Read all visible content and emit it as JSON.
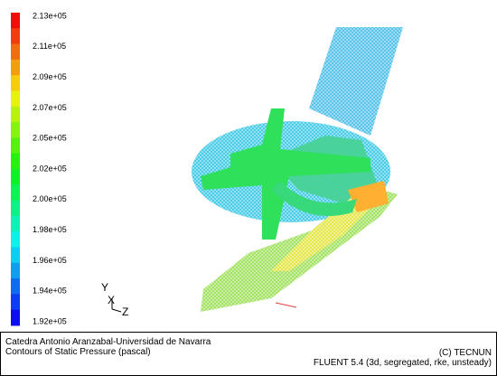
{
  "colorbar": {
    "labels": [
      "2.13e+05",
      "2.11e+05",
      "2.09e+05",
      "2.07e+05",
      "2.05e+05",
      "2.02e+05",
      "2.00e+05",
      "1.98e+05",
      "1.96e+05",
      "1.94e+05",
      "1.92e+05"
    ]
  },
  "axes_triad": {
    "y": "Y",
    "x": "X",
    "z": "Z"
  },
  "footer": {
    "left": [
      "Catedra Antonio Aranzabal-Universidad de Navarra",
      "Contours of Static Pressure (pascal)"
    ],
    "right": [
      "(C) TECNUN",
      "FLUENT 5.4 (3d, segregated, rke, unsteady)"
    ]
  }
}
